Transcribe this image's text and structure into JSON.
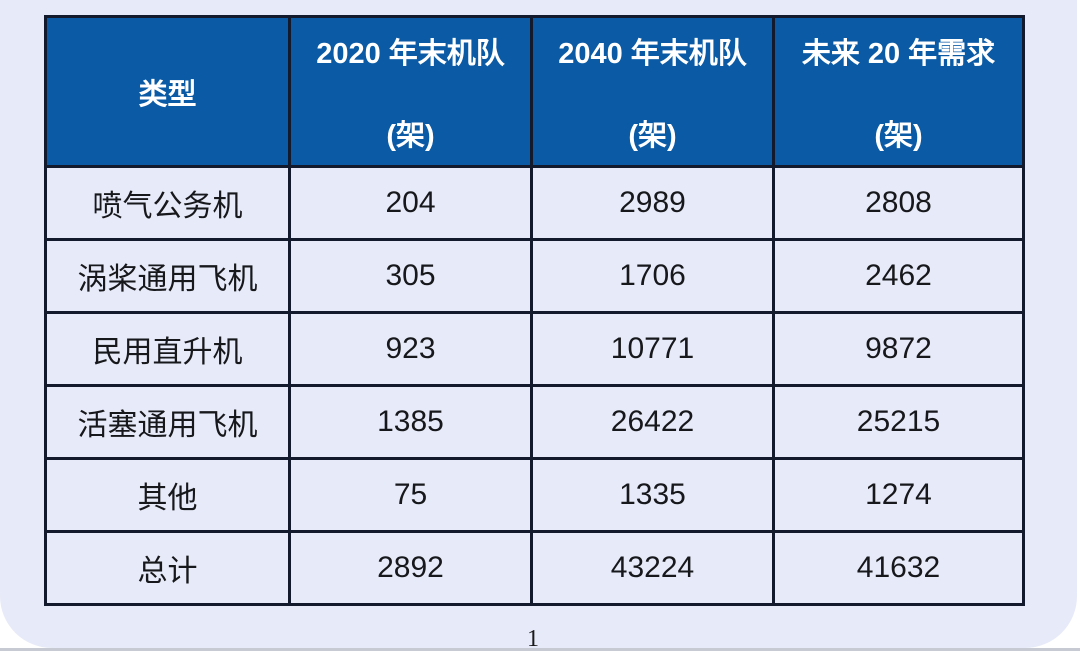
{
  "page": {
    "page_number": "1"
  },
  "colors": {
    "header_bg": "#0A5AA5",
    "header_text": "#FFFFFF",
    "cell_bg": "#E7EAF8",
    "border": "#141A2E",
    "body_text": "#17181C",
    "bottom_strip": "#C8CAD3"
  },
  "table": {
    "header": {
      "type_label": "类型",
      "cols": [
        {
          "line1": "2020 年末机队",
          "line2": "(架)"
        },
        {
          "line1": "2040 年末机队",
          "line2": "(架)"
        },
        {
          "line1": "未来 20 年需求",
          "line2": "(架)"
        }
      ]
    },
    "rows": [
      {
        "type": "喷气公务机",
        "v2020": "204",
        "v2040": "2989",
        "demand": "2808"
      },
      {
        "type": "涡桨通用飞机",
        "v2020": "305",
        "v2040": "1706",
        "demand": "2462"
      },
      {
        "type": "民用直升机",
        "v2020": "923",
        "v2040": "10771",
        "demand": "9872"
      },
      {
        "type": "活塞通用飞机",
        "v2020": "1385",
        "v2040": "26422",
        "demand": "25215"
      },
      {
        "type": "其他",
        "v2020": "75",
        "v2040": "1335",
        "demand": "1274"
      },
      {
        "type": "总计",
        "v2020": "2892",
        "v2040": "43224",
        "demand": "41632"
      }
    ]
  },
  "chart_data": {
    "type": "table",
    "title": "",
    "columns": [
      "类型",
      "2020 年末机队 (架)",
      "2040 年末机队 (架)",
      "未来 20 年需求 (架)"
    ],
    "rows": [
      [
        "喷气公务机",
        204,
        2989,
        2808
      ],
      [
        "涡桨通用飞机",
        305,
        1706,
        2462
      ],
      [
        "民用直升机",
        923,
        10771,
        9872
      ],
      [
        "活塞通用飞机",
        1385,
        26422,
        25215
      ],
      [
        "其他",
        75,
        1335,
        1274
      ],
      [
        "总计",
        2892,
        43224,
        41632
      ]
    ]
  }
}
